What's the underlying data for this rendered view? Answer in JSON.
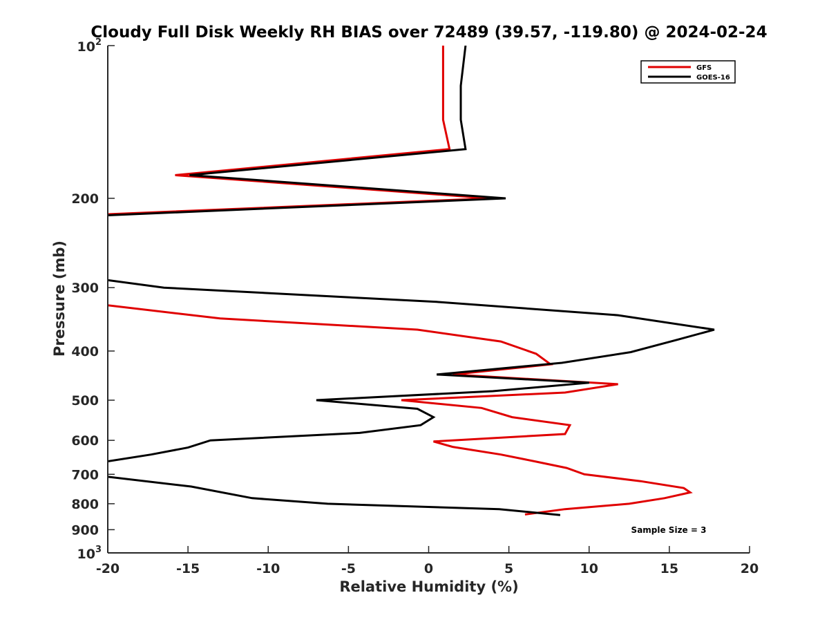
{
  "chart_data": {
    "type": "line",
    "title": "Cloudy Full Disk Weekly RH BIAS over 72489 (39.57, -119.80) @ 2024-02-24",
    "xlabel": "Relative Humidity (%)",
    "ylabel": "Pressure (mb)",
    "xlim": [
      -20,
      20
    ],
    "ylim": [
      100,
      1000
    ],
    "y_scale": "log",
    "y_reversed": true,
    "x_ticks": [
      -20,
      -15,
      -10,
      -5,
      0,
      5,
      10,
      15,
      20
    ],
    "x_tick_labels": [
      "-20",
      "-15",
      "-10",
      "-5",
      "0",
      "5",
      "10",
      "15",
      "20"
    ],
    "y_ticks": [
      {
        "value": 100,
        "label": "10",
        "exp": "2"
      },
      {
        "value": 200,
        "label": "200",
        "exp": ""
      },
      {
        "value": 300,
        "label": "300",
        "exp": ""
      },
      {
        "value": 400,
        "label": "400",
        "exp": ""
      },
      {
        "value": 500,
        "label": "500",
        "exp": ""
      },
      {
        "value": 600,
        "label": "600",
        "exp": ""
      },
      {
        "value": 700,
        "label": "700",
        "exp": ""
      },
      {
        "value": 800,
        "label": "800",
        "exp": ""
      },
      {
        "value": 900,
        "label": "900",
        "exp": ""
      },
      {
        "value": 1000,
        "label": "10",
        "exp": "3"
      }
    ],
    "legend_position": "top-right",
    "grid": false,
    "annotation": "Sample Size = 3",
    "series": [
      {
        "name": "GFS",
        "color": "#e00000",
        "points": [
          [
            0.9,
            100
          ],
          [
            0.9,
            140
          ],
          [
            1.3,
            160
          ],
          [
            -15.8,
            180
          ],
          [
            3.8,
            200
          ],
          [
            -20,
            215
          ],
          [
            null,
            null
          ],
          [
            -20,
            325
          ],
          [
            -13,
            345
          ],
          [
            -0.7,
            363
          ],
          [
            4.5,
            383
          ],
          [
            6.7,
            405
          ],
          [
            7.6,
            425
          ],
          [
            1.5,
            445
          ],
          [
            11.8,
            465
          ],
          [
            8.5,
            483
          ],
          [
            -1.7,
            500
          ],
          [
            3.3,
            518
          ],
          [
            5.2,
            540
          ],
          [
            8.8,
            560
          ],
          [
            8.5,
            583
          ],
          [
            0.3,
            603
          ],
          [
            1.5,
            618
          ],
          [
            4.5,
            640
          ],
          [
            6.6,
            660
          ],
          [
            8.6,
            680
          ],
          [
            9.7,
            700
          ],
          [
            13.2,
            722
          ],
          [
            15.9,
            745
          ],
          [
            16.3,
            760
          ],
          [
            14.7,
            780
          ],
          [
            12.5,
            800
          ],
          [
            8.5,
            820
          ],
          [
            6.0,
            840
          ]
        ]
      },
      {
        "name": "GOES-16",
        "color": "#000000",
        "points": [
          [
            2.3,
            100
          ],
          [
            2.0,
            120
          ],
          [
            2.0,
            140
          ],
          [
            2.2,
            153
          ],
          [
            2.3,
            160
          ],
          [
            -14.9,
            180
          ],
          [
            4.8,
            200
          ],
          [
            -20,
            216
          ],
          [
            null,
            null
          ],
          [
            -20,
            290
          ],
          [
            -16.5,
            300
          ],
          [
            0.5,
            320
          ],
          [
            11.8,
            340
          ],
          [
            17.8,
            363
          ],
          [
            15.5,
            380
          ],
          [
            12.6,
            402
          ],
          [
            8.3,
            422
          ],
          [
            0.5,
            445
          ],
          [
            10.0,
            462
          ],
          [
            4.0,
            480
          ],
          [
            -7.0,
            500
          ],
          [
            -0.7,
            520
          ],
          [
            0.3,
            540
          ],
          [
            -0.5,
            560
          ],
          [
            -4.3,
            580
          ],
          [
            -13.6,
            600
          ],
          [
            -15.0,
            620
          ],
          [
            -17.3,
            640
          ],
          [
            -20,
            660
          ],
          [
            null,
            null
          ],
          [
            -20,
            708
          ],
          [
            -14.8,
            740
          ],
          [
            -11.0,
            780
          ],
          [
            -6.3,
            800
          ],
          [
            4.4,
            820
          ],
          [
            8.2,
            842
          ]
        ]
      }
    ]
  }
}
